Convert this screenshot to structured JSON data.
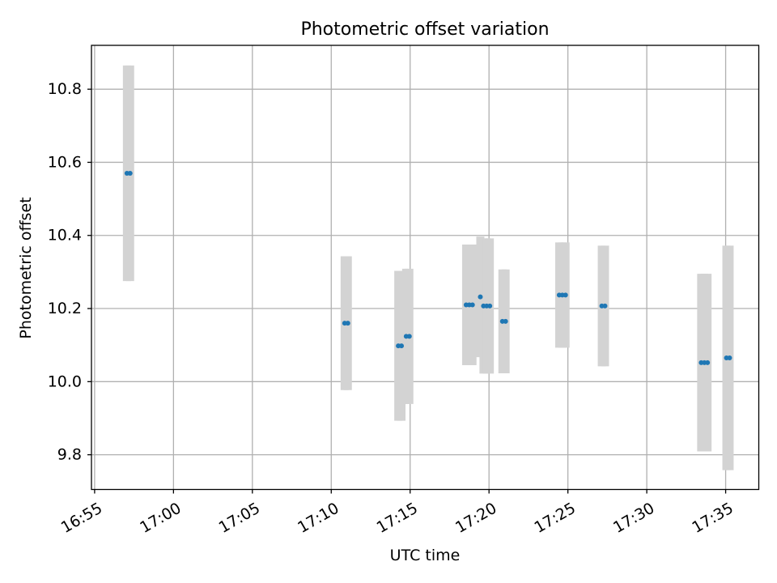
{
  "chart_data": {
    "type": "scatter",
    "title": "Photometric offset variation",
    "xlabel": "UTC time",
    "ylabel": "Photometric offset",
    "x_unit": "time (HH:MM)",
    "xlim": [
      "16:54.8",
      "17:37.1"
    ],
    "ylim": [
      9.705,
      10.92
    ],
    "x_ticks": [
      "16:55",
      "17:00",
      "17:05",
      "17:10",
      "17:15",
      "17:20",
      "17:25",
      "17:30",
      "17:35"
    ],
    "y_ticks": [
      9.8,
      10.0,
      10.2,
      10.4,
      10.6,
      10.8
    ],
    "y_tick_labels": [
      "9.8",
      "10.0",
      "10.2",
      "10.4",
      "10.6",
      "10.8"
    ],
    "grid": true,
    "point_color": "#1f77b4",
    "errorbar_color": "#d3d3d3",
    "points": [
      {
        "t": "16:57.05",
        "y": 10.57,
        "err": 0.295
      },
      {
        "t": "16:57.25",
        "y": 10.57,
        "err": 0.295
      },
      {
        "t": "17:10.85",
        "y": 10.16,
        "err": 0.183
      },
      {
        "t": "17:11.05",
        "y": 10.16,
        "err": 0.183
      },
      {
        "t": "17:14.25",
        "y": 10.098,
        "err": 0.205
      },
      {
        "t": "17:14.45",
        "y": 10.098,
        "err": 0.205
      },
      {
        "t": "17:14.75",
        "y": 10.124,
        "err": 0.185
      },
      {
        "t": "17:14.95",
        "y": 10.124,
        "err": 0.185
      },
      {
        "t": "17:18.55",
        "y": 10.21,
        "err": 0.165
      },
      {
        "t": "17:18.75",
        "y": 10.21,
        "err": 0.165
      },
      {
        "t": "17:18.95",
        "y": 10.21,
        "err": 0.165
      },
      {
        "t": "17:19.45",
        "y": 10.232,
        "err": 0.165
      },
      {
        "t": "17:19.65",
        "y": 10.207,
        "err": 0.185
      },
      {
        "t": "17:19.85",
        "y": 10.207,
        "err": 0.185
      },
      {
        "t": "17:20.05",
        "y": 10.207,
        "err": 0.185
      },
      {
        "t": "17:20.85",
        "y": 10.165,
        "err": 0.142
      },
      {
        "t": "17:21.05",
        "y": 10.165,
        "err": 0.142
      },
      {
        "t": "17:24.45",
        "y": 10.237,
        "err": 0.144
      },
      {
        "t": "17:24.65",
        "y": 10.237,
        "err": 0.144
      },
      {
        "t": "17:24.85",
        "y": 10.237,
        "err": 0.144
      },
      {
        "t": "17:27.15",
        "y": 10.207,
        "err": 0.165
      },
      {
        "t": "17:27.35",
        "y": 10.207,
        "err": 0.165
      },
      {
        "t": "17:33.45",
        "y": 10.052,
        "err": 0.243
      },
      {
        "t": "17:33.65",
        "y": 10.052,
        "err": 0.243
      },
      {
        "t": "17:33.85",
        "y": 10.052,
        "err": 0.243
      },
      {
        "t": "17:35.05",
        "y": 10.065,
        "err": 0.307
      },
      {
        "t": "17:35.25",
        "y": 10.065,
        "err": 0.307
      }
    ]
  }
}
